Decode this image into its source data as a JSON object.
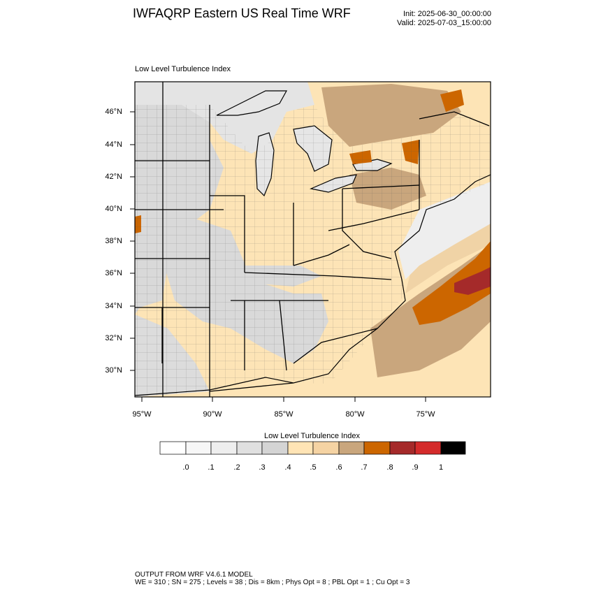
{
  "header": {
    "title": "IWFAQRP Eastern US Real Time WRF",
    "init": "Init: 2025-06-30_00:00:00",
    "valid": "Valid: 2025-07-03_15:00:00"
  },
  "map": {
    "field_label": "Low Level Turbulence Index",
    "lat_labels": [
      "46°N",
      "44°N",
      "42°N",
      "40°N",
      "38°N",
      "36°N",
      "34°N",
      "32°N",
      "30°N"
    ],
    "lon_labels": [
      "95°W",
      "90°W",
      "85°W",
      "80°W",
      "75°W"
    ],
    "colors": {
      "background_land": "#fde4b6",
      "water": "#e6e6e6",
      "light_grey": "#d9d9d9",
      "tan": "#c9a67d",
      "orange": "#cc6600",
      "dark_red": "#a52a2a"
    }
  },
  "colorbar": {
    "title": "Low Level Turbulence Index",
    "labels": [
      ".0",
      ".1",
      ".2",
      ".3",
      ".4",
      ".5",
      ".6",
      ".7",
      ".8",
      ".9",
      "1"
    ],
    "colors": [
      "#ffffff",
      "#f7f7f7",
      "#eeeeee",
      "#e0e0e0",
      "#d4d4d4",
      "#ffe4b5",
      "#f5d3a3",
      "#c9a67d",
      "#cc6600",
      "#a52a2a",
      "#d42b2b",
      "#000000"
    ]
  },
  "footer": {
    "line1": "OUTPUT FROM WRF V4.6.1 MODEL",
    "line2": "WE = 310 ; SN = 275 ; Levels = 38 ; Dis = 8km ; Phys Opt = 8 ; PBL Opt = 1 ; Cu Opt = 3"
  }
}
